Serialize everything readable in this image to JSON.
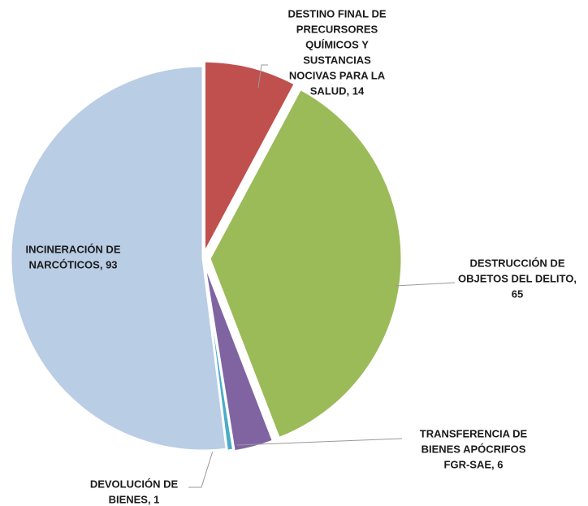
{
  "chart_data": {
    "type": "pie",
    "values": [
      14,
      65,
      6,
      1,
      93
    ],
    "value_labels": [
      [
        "DESTINO FINAL DE",
        "PRECURSORES",
        "QUÍMICOS Y",
        "SUSTANCIAS",
        "NOCIVAS PARA LA",
        "SALUD, 14"
      ],
      [
        "DESTRUCCIÓN DE",
        "OBJETOS DEL DELITO,",
        "65"
      ],
      [
        "TRANSFERENCIA DE",
        "BIENES APÓCRIFOS",
        "FGR-SAE, 6"
      ],
      [
        "DEVOLUCIÓN DE",
        "BIENES, 1"
      ],
      [
        "INCINERACIÓN DE",
        "NARCÓTICOS, 93"
      ]
    ],
    "colors": [
      "#c0504d",
      "#9bbb59",
      "#8064a2",
      "#4bacc6",
      "#b9cde5"
    ]
  }
}
